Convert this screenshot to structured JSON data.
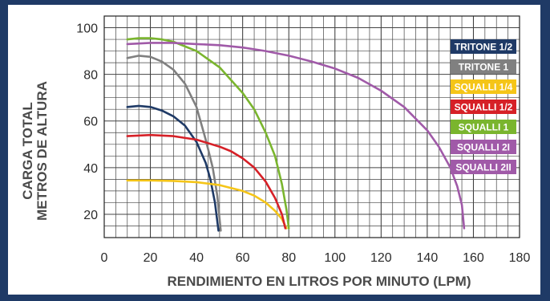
{
  "chart_data": {
    "type": "line",
    "xlabel": "RENDIMIENTO EN LITROS POR MINUTO (LPM)",
    "ylabel_line1": "CARGA TOTAL",
    "ylabel_line2": "METROS DE ALTURA",
    "xlim": [
      0,
      180
    ],
    "ylim": [
      10,
      105
    ],
    "x_ticks": [
      "0",
      "20",
      "40",
      "60",
      "80",
      "100",
      "120",
      "140",
      "160",
      "180"
    ],
    "y_ticks": [
      "20",
      "40",
      "60",
      "80",
      "100"
    ],
    "grid": true,
    "legend_position": "top-right",
    "series": [
      {
        "name": "TRITONE 1/2",
        "color": "#1f3a66",
        "x": [
          10,
          15,
          20,
          25,
          30,
          35,
          40,
          44,
          46,
          48,
          49.5
        ],
        "y": [
          66,
          66.5,
          66,
          64.5,
          62,
          58,
          51,
          42,
          35,
          25,
          13
        ]
      },
      {
        "name": "TRITONE 1",
        "color": "#808080",
        "x": [
          10,
          15,
          20,
          25,
          30,
          35,
          40,
          44,
          47,
          49,
          50.5
        ],
        "y": [
          87,
          88,
          87.5,
          85.5,
          82,
          76,
          66,
          52,
          40,
          28,
          13
        ]
      },
      {
        "name": "SQUALLI 1/4",
        "color": "#f5c518",
        "x": [
          10,
          20,
          30,
          40,
          50,
          60,
          65,
          70,
          74,
          77,
          79
        ],
        "y": [
          34.5,
          34.5,
          34.3,
          33.8,
          32.5,
          30,
          28,
          25,
          21.5,
          18,
          14
        ]
      },
      {
        "name": "SQUALLI 1/2",
        "color": "#d62027",
        "x": [
          10,
          20,
          30,
          40,
          50,
          55,
          60,
          65,
          70,
          74,
          77,
          78.5
        ],
        "y": [
          53.5,
          54,
          53.5,
          52,
          49,
          47,
          44,
          40,
          34,
          27,
          20,
          14
        ]
      },
      {
        "name": "SQUALLI 1",
        "color": "#7ab52e",
        "x": [
          10,
          15,
          20,
          25,
          30,
          40,
          50,
          60,
          65,
          70,
          74,
          77,
          79,
          80
        ],
        "y": [
          95,
          95.5,
          95.5,
          95,
          94,
          90,
          83,
          72,
          65,
          55,
          45,
          33,
          22,
          14
        ]
      },
      {
        "name": "SQUALLI 2I",
        "color": "#a05aa8",
        "x": [
          10,
          20,
          30,
          40,
          50,
          60,
          70,
          80,
          90,
          100,
          110,
          120,
          130,
          140,
          145,
          150,
          153,
          155,
          156
        ],
        "y": [
          93,
          93.5,
          93.5,
          93,
          92.5,
          91.5,
          90,
          88,
          85.5,
          82.5,
          78.5,
          73,
          66,
          56,
          49,
          40,
          32,
          24,
          14
        ]
      }
    ],
    "legend_extra": [
      {
        "name": "SQUALLI 2II",
        "color": "#a05aa8"
      }
    ]
  }
}
